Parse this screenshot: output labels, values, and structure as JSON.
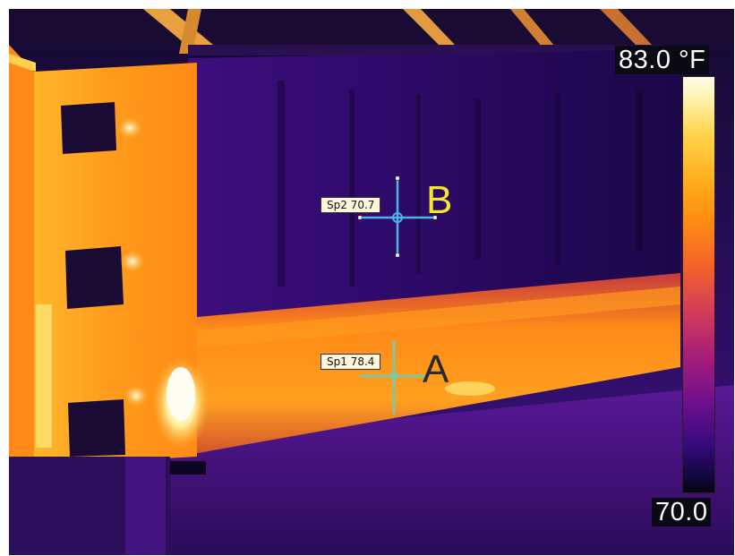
{
  "thermal_image": {
    "scale": {
      "max_label": "83.0 °F",
      "min_label": "70.0",
      "max_value": 83.0,
      "min_value": 70.0,
      "unit": "°F",
      "palette": [
        "#fffce8",
        "#ffd34a",
        "#ff8a12",
        "#d23a5a",
        "#6b0f8e",
        "#0e0733"
      ]
    },
    "spots": [
      {
        "id": "Sp1",
        "label": "Sp1 78.4",
        "letter": "A",
        "value": 78.4,
        "color": "#7fc8a0",
        "letter_color": "#2a2a2a"
      },
      {
        "id": "Sp2",
        "label": "Sp2 70.7",
        "letter": "B",
        "value": 70.7,
        "color": "#4fb5e6",
        "letter_color": "#f5e82a"
      }
    ]
  }
}
